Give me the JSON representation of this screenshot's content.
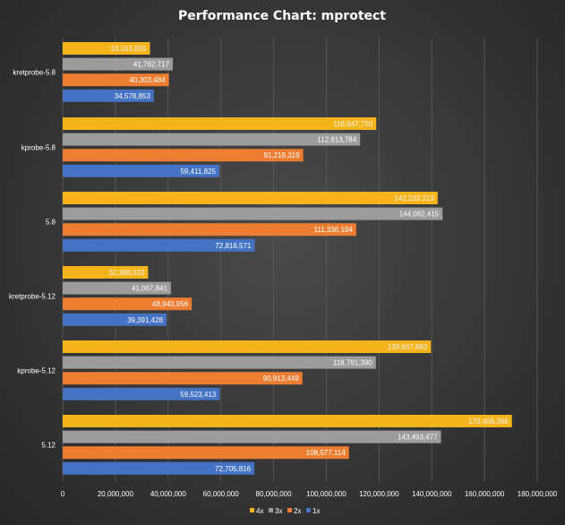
{
  "chart_data": {
    "type": "bar",
    "orientation": "horizontal",
    "title": "Performance Chart: mprotect",
    "categories": [
      "kretprobe-5.8",
      "kprobe-5.8",
      "5.8",
      "kretprobe-5.12",
      "kprobe-5.12",
      "5.12"
    ],
    "series": [
      {
        "name": "4x",
        "color": "#f4b41a",
        "values": [
          33103855,
          118947750,
          142233213,
          32388033,
          139667883,
          170406366
        ],
        "labels": [
          "33,103,855",
          "118,947,750",
          "142,233,213",
          "32,388,033",
          "139,667,883",
          "170,406,366"
        ]
      },
      {
        "name": "3x",
        "color": "#9c9c9c",
        "values": [
          41762717,
          112813784,
          144082415,
          41067841,
          118791390,
          143493477
        ],
        "labels": [
          "41,762,717",
          "112,813,784",
          "144,082,415",
          "41,067,841",
          "118,791,390",
          "143,493,477"
        ]
      },
      {
        "name": "2x",
        "color": "#ed7d31",
        "values": [
          40303484,
          91219319,
          111336194,
          48940956,
          90913449,
          108577114
        ],
        "labels": [
          "40,303,484",
          "91,219,319",
          "111,336,194",
          "48,940,956",
          "90,913,449",
          "108,577,114"
        ]
      },
      {
        "name": "1x",
        "color": "#4472c4",
        "values": [
          34578853,
          59411825,
          72816571,
          39391428,
          59523413,
          72705816
        ],
        "labels": [
          "34,578,853",
          "59,411,825",
          "72,816,571",
          "39,391,428",
          "59,523,413",
          "72,705,816"
        ]
      }
    ],
    "xlim": [
      0,
      180000000
    ],
    "xticks": [
      "0",
      "20,000,000",
      "40,000,000",
      "60,000,000",
      "80,000,000",
      "100,000,000",
      "120,000,000",
      "140,000,000",
      "160,000,000",
      "180,000,000"
    ],
    "grid": true,
    "legend": "bottom"
  }
}
